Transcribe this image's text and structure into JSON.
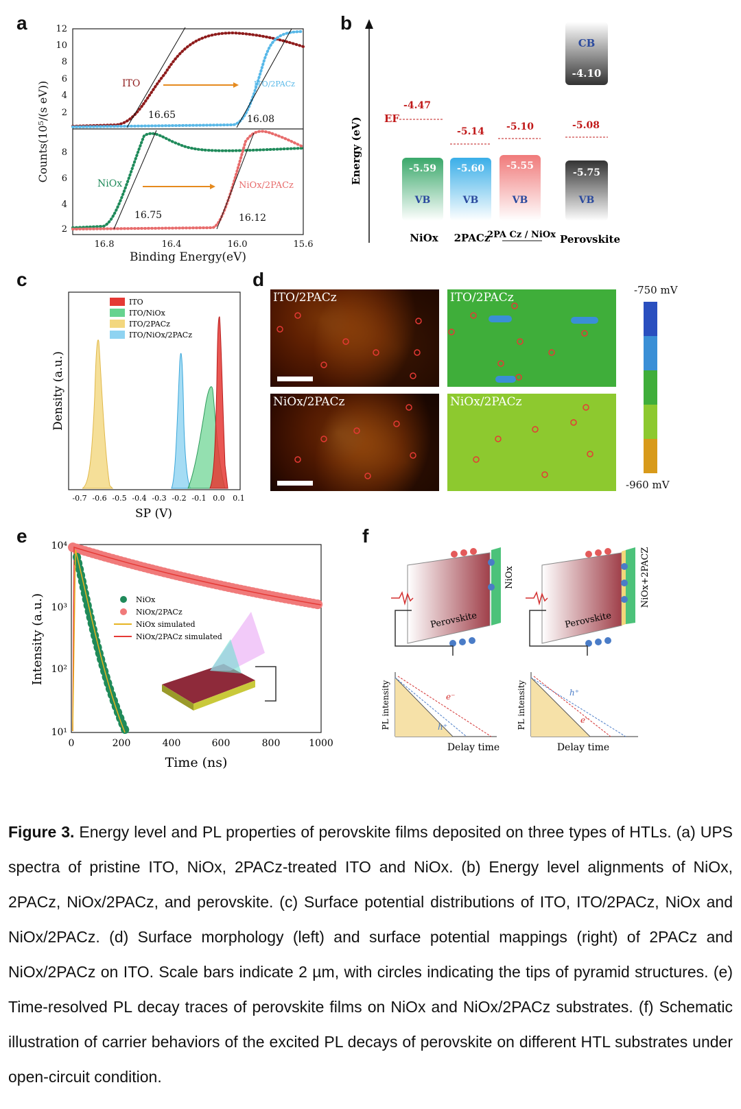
{
  "panels": {
    "a": "a",
    "b": "b",
    "c": "c",
    "d": "d",
    "e": "e",
    "f": "f"
  },
  "panel_a": {
    "ylabel": "Counts(10⁵/(s eV))",
    "xlabel": "Binding Energy(eV)",
    "x_ticks": [
      "16.8",
      "16.4",
      "16.0",
      "15.6"
    ],
    "top_y_ticks": [
      "12",
      "10",
      "8",
      "6",
      "4",
      "2"
    ],
    "bottom_y_ticks": [
      "8",
      "6",
      "4",
      "2"
    ],
    "series": [
      {
        "name": "ITO",
        "cutoff": "16.65",
        "color": "#8e1b1b"
      },
      {
        "name": "ITO/2PACz",
        "cutoff": "16.08",
        "color": "#58b8e8"
      },
      {
        "name": "NiOx",
        "cutoff": "16.75",
        "color": "#1f8a5a"
      },
      {
        "name": "NiOx/2PACz",
        "cutoff": "16.12",
        "color": "#e76b6b"
      }
    ]
  },
  "panel_b": {
    "ylabel": "Energy (eV)",
    "ef_label": "EF",
    "cb_label": "CB",
    "vb_label": "VB",
    "cbm": "-4.10",
    "materials": [
      {
        "name": "NiOx",
        "ef": "-4.47",
        "vb": "-5.59",
        "color": "#3aa86a"
      },
      {
        "name": "2PACz",
        "ef": "-5.14",
        "vb": "-5.60",
        "color": "#3aaee8"
      },
      {
        "name": "2PA Cz / NiOx",
        "ef": "-5.10",
        "vb": "-5.55",
        "color": "#f07a7a"
      },
      {
        "name": "Perovskite",
        "ef": "-5.08",
        "vb": "-5.75",
        "color": "#333333"
      }
    ]
  },
  "panel_c": {
    "ylabel": "Density (a.u.)",
    "xlabel": "SP (V)",
    "x_ticks": [
      "-0.7",
      "-0.6",
      "-0.5",
      "-0.4",
      "-0.3",
      "-0.2",
      "-0.1",
      "0.0",
      "0.1"
    ],
    "legend": [
      {
        "name": "ITO",
        "color": "#e53935"
      },
      {
        "name": "ITO/NiOx",
        "color": "#66d38f"
      },
      {
        "name": "ITO/2PACz",
        "color": "#f3d77e"
      },
      {
        "name": "ITO/NiOx/2PACz",
        "color": "#8fd3f1"
      }
    ]
  },
  "panel_d": {
    "afm_top": "ITO/2PACz",
    "afm_bottom": "NiOx/2PACz",
    "kpfm_top": "ITO/2PACz",
    "kpfm_bottom": "NiOx/2PACz",
    "scale_top": "-750 mV",
    "scale_bottom": "-960 mV"
  },
  "panel_e": {
    "ylabel": "Intensity (a.u.)",
    "xlabel": "Time (ns)",
    "x_ticks": [
      "0",
      "200",
      "400",
      "600",
      "800",
      "1000"
    ],
    "y_ticks": [
      "10⁴",
      "10³",
      "10²",
      "10¹"
    ],
    "legend": [
      "NiOx",
      "NiOx/2PACz",
      "NiOx simulated",
      "NiOx/2PACz simulated"
    ]
  },
  "panel_f": {
    "left_htl": "NiOx",
    "right_htl": "NiOx+2PACZ",
    "perovskite": "Perovskite",
    "pl_ylabel": "PL intensity",
    "pl_xlabel": "Delay time",
    "e_label": "e⁻",
    "h_label": "h⁺"
  },
  "caption": {
    "label": "Figure 3.",
    "text": " Energy level and PL properties of perovskite films deposited on three types of HTLs. (a) UPS spectra of pristine ITO, NiOx, 2PACz-treated ITO and NiOx. (b) Energy level alignments of NiOx, 2PACz, NiOx/2PACz, and perovskite. (c) Surface potential distributions of ITO, ITO/2PACz, NiOx and NiOx/2PACz. (d) Surface morphology (left) and surface potential mappings (right) of 2PACz and NiOx/2PACz on ITO. Scale bars indicate 2 µm, with circles indicating the tips of pyramid structures. (e) Time-resolved PL decay traces of perovskite films on NiOx and NiOx/2PACz substrates. (f) Schematic illustration of carrier behaviors of the excited PL decays of perovskite on different HTL substrates under open-circuit condition."
  }
}
